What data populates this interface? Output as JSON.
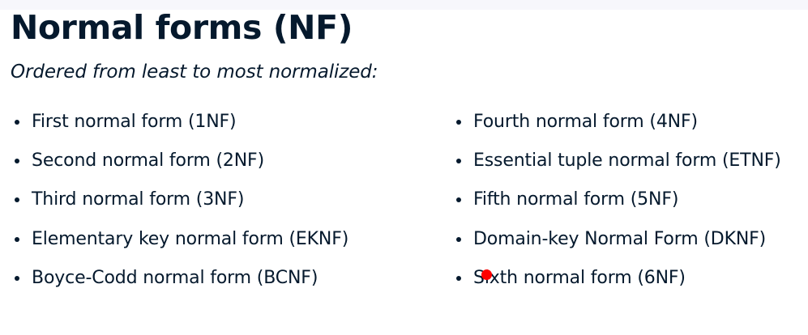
{
  "heading": {
    "title": "Normal forms (NF)",
    "subtitle": "Ordered from least to most normalized:"
  },
  "lists": {
    "left": [
      "First normal form (1NF)",
      "Second normal form (2NF)",
      "Third normal form (3NF)",
      "Elementary key normal form (EKNF)",
      "Boyce-Codd normal form (BCNF)"
    ],
    "right": [
      "Fourth normal form (4NF)",
      "Essential tuple normal form (ETNF)",
      "Fifth normal form (5NF)",
      "Domain-key Normal Form (DKNF)",
      "Sixth normal form (6NF)"
    ]
  },
  "colors": {
    "text": "#05192d",
    "cursor": "#ff0000",
    "topbar": "#f7f7fc"
  }
}
